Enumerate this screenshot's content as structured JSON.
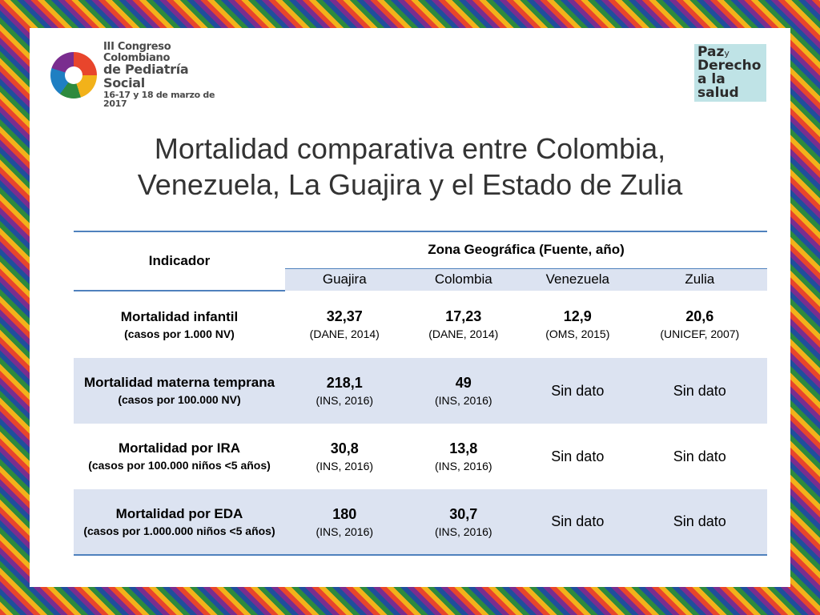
{
  "logo_left": {
    "line1": "III Congreso Colombiano",
    "line2": "de Pediatría Social",
    "line3": "16-17 y 18 de marzo de 2017"
  },
  "logo_right": {
    "line1": "Paz",
    "line1_small": "y",
    "line2": "Derecho",
    "line3": "a la salud"
  },
  "title": {
    "line1": "Mortalidad comparativa entre Colombia,",
    "line2": "Venezuela, La Guajira y el Estado de Zulia"
  },
  "table": {
    "header_indicator": "Indicador",
    "header_zone": "Zona Geográfica (Fuente, año)",
    "columns": [
      "Guajira",
      "Colombia",
      "Venezuela",
      "Zulia"
    ],
    "rows": [
      {
        "indicator": "Mortalidad infantil",
        "unit": "(casos por 1.000 NV)",
        "cells": [
          {
            "value": "32,37",
            "source": "(DANE, 2014)"
          },
          {
            "value": "17,23",
            "source": "(DANE, 2014)"
          },
          {
            "value": "12,9",
            "source": "(OMS, 2015)"
          },
          {
            "value": "20,6",
            "source": "(UNICEF, 2007)"
          }
        ]
      },
      {
        "indicator": "Mortalidad materna temprana",
        "unit": "(casos por 100.000 NV)",
        "cells": [
          {
            "value": "218,1",
            "source": "(INS, 2016)"
          },
          {
            "value": "49",
            "source": "(INS, 2016)"
          },
          {
            "nodata": "Sin dato"
          },
          {
            "nodata": "Sin dato"
          }
        ]
      },
      {
        "indicator": "Mortalidad por IRA",
        "unit": "(casos por 100.000 niños <5 años)",
        "cells": [
          {
            "value": "30,8",
            "source": "(INS, 2016)"
          },
          {
            "value": "13,8",
            "source": "(INS, 2016)"
          },
          {
            "nodata": "Sin dato"
          },
          {
            "nodata": "Sin dato"
          }
        ]
      },
      {
        "indicator": "Mortalidad por EDA",
        "unit": "(casos por 1.000.000 niños <5 años)",
        "cells": [
          {
            "value": "180",
            "source": "(INS, 2016)"
          },
          {
            "value": "30,7",
            "source": "(INS, 2016)"
          },
          {
            "nodata": "Sin dato"
          },
          {
            "nodata": "Sin dato"
          }
        ]
      }
    ]
  }
}
